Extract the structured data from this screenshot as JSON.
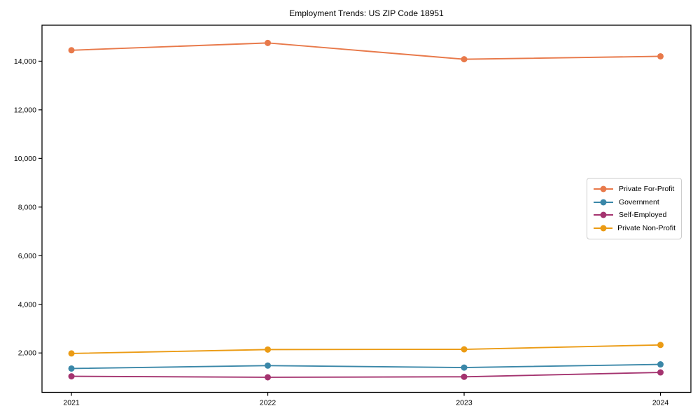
{
  "chart_data": {
    "type": "line",
    "title": "Employment Trends: US ZIP Code 18951",
    "xlabel": "",
    "ylabel": "",
    "categories": [
      "2021",
      "2022",
      "2023",
      "2024"
    ],
    "x_values": [
      2021,
      2022,
      2023,
      2024
    ],
    "series": [
      {
        "name": "Private For-Profit",
        "color": "#e8794a",
        "values": [
          14450,
          14750,
          14080,
          14200
        ]
      },
      {
        "name": "Government",
        "color": "#3a87a8",
        "values": [
          1360,
          1480,
          1400,
          1530
        ]
      },
      {
        "name": "Self-Employed",
        "color": "#a4336f",
        "values": [
          1040,
          1000,
          1020,
          1200
        ]
      },
      {
        "name": "Private Non-Profit",
        "color": "#eb9b14",
        "values": [
          1980,
          2140,
          2150,
          2330
        ]
      }
    ],
    "y_ticks": [
      {
        "value": 2000,
        "label": "2,000"
      },
      {
        "value": 4000,
        "label": "4,000"
      },
      {
        "value": 6000,
        "label": "6,000"
      },
      {
        "value": 8000,
        "label": "8,000"
      },
      {
        "value": 10000,
        "label": "10,000"
      },
      {
        "value": 12000,
        "label": "12,000"
      },
      {
        "value": 14000,
        "label": "14,000"
      }
    ],
    "xlim": [
      2020.85,
      2024.155
    ],
    "ylim": [
      380,
      15480
    ],
    "grid": false,
    "legend_position": "center right",
    "frame_color": "#000000",
    "background_color": "#ffffff"
  }
}
